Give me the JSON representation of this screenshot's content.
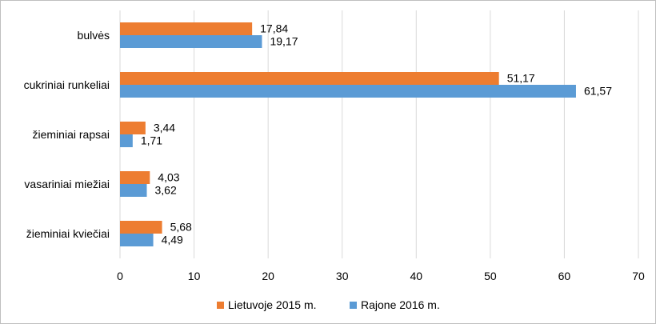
{
  "chart_data": {
    "type": "bar",
    "orientation": "horizontal",
    "categories": [
      "bulvės",
      "cukriniai runkeliai",
      "žieminiai rapsai",
      "vasariniai miežiai",
      "žieminiai kviečiai"
    ],
    "series": [
      {
        "name": "Lietuvoje 2015 m.",
        "color": "#ed7d31",
        "values": [
          17.84,
          51.17,
          3.44,
          4.03,
          5.68
        ],
        "labels": [
          "17,84",
          "51,17",
          "3,44",
          "4,03",
          "5,68"
        ]
      },
      {
        "name": "Rajone 2016 m.",
        "color": "#5b9bd5",
        "values": [
          19.17,
          61.57,
          1.71,
          3.62,
          4.49
        ],
        "labels": [
          "19,17",
          "61,57",
          "1,71",
          "3,62",
          "4,49"
        ]
      }
    ],
    "xlim": [
      0,
      70
    ],
    "xticks": [
      0,
      10,
      20,
      30,
      40,
      50,
      60,
      70
    ],
    "xtick_labels": [
      "0",
      "10",
      "20",
      "30",
      "40",
      "50",
      "60",
      "70"
    ],
    "grid": true,
    "legend": "bottom-center"
  }
}
